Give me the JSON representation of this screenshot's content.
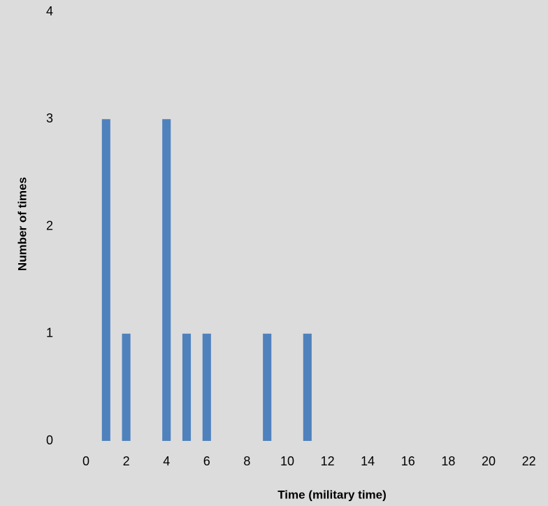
{
  "chart_data": {
    "type": "bar",
    "x_label": "Time (military time)",
    "y_label": "Number of times",
    "categories": [
      0,
      null,
      2,
      null,
      4,
      null,
      6,
      null,
      8,
      null,
      10,
      null,
      12,
      null,
      14,
      null,
      16,
      null,
      18,
      null,
      20,
      null,
      22
    ],
    "values": [
      0,
      3,
      1,
      0,
      3,
      1,
      1,
      0,
      0,
      1,
      0,
      1,
      0,
      0,
      0,
      0,
      0,
      0,
      0,
      0,
      0,
      0,
      0
    ],
    "color": "#4f81bd",
    "ylim": [
      0,
      4
    ],
    "yticks": [
      0,
      1,
      2,
      3,
      4
    ],
    "grid": false
  }
}
